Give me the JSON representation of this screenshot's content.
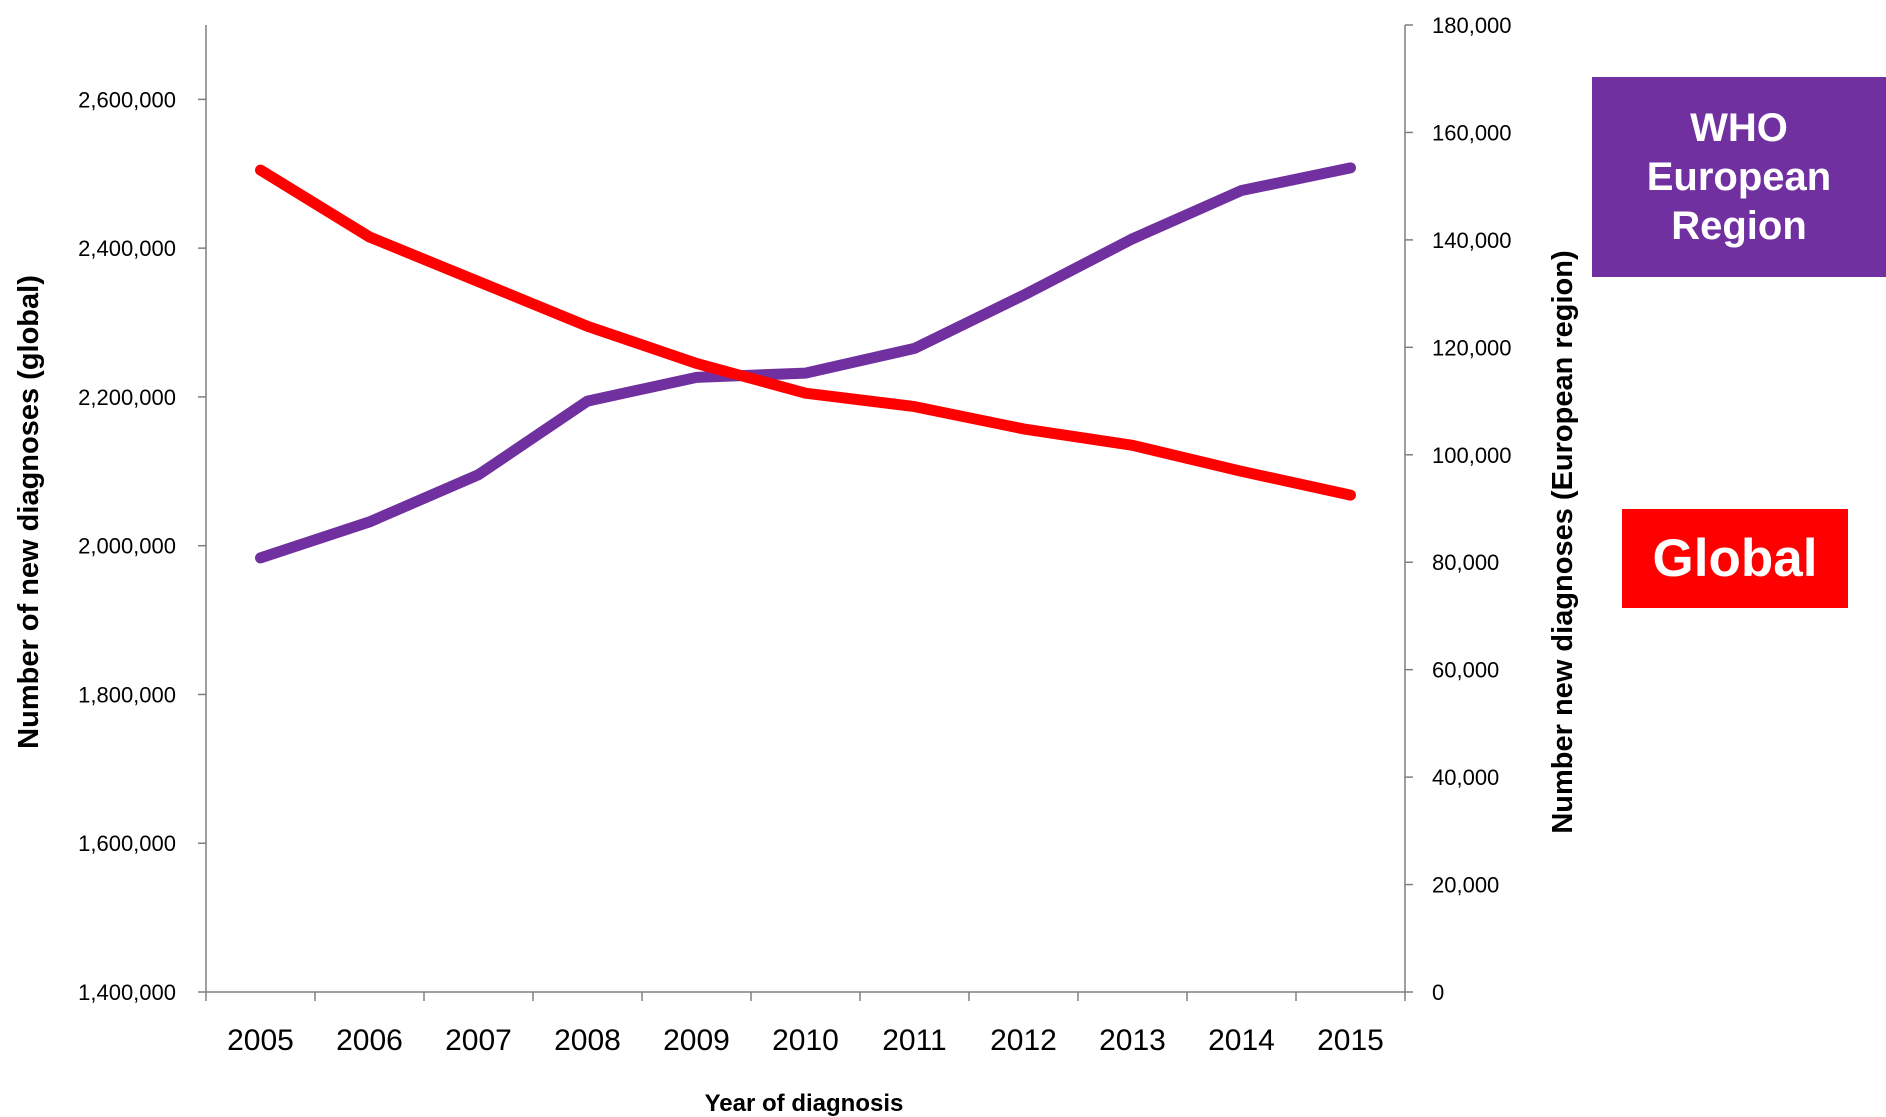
{
  "chart_data": {
    "type": "line",
    "categories": [
      "2005",
      "2006",
      "2007",
      "2008",
      "2009",
      "2010",
      "2011",
      "2012",
      "2013",
      "2014",
      "2015"
    ],
    "series": [
      {
        "name": "Global",
        "axis": "left",
        "color": "#ff0000",
        "values": [
          2505000,
          2415000,
          2355000,
          2295000,
          2245000,
          2205000,
          2187000,
          2157000,
          2135000,
          2100000,
          2068000
        ]
      },
      {
        "name": "WHO European Region",
        "axis": "right",
        "color": "#7030a0",
        "values": [
          80800,
          87500,
          96300,
          110000,
          114400,
          115200,
          119800,
          129700,
          140200,
          149200,
          153400
        ]
      }
    ],
    "y_left": {
      "label": "Number of new diagnoses (global)",
      "ylim": [
        1400000,
        2700000
      ],
      "ticks": [
        1400000,
        1600000,
        1800000,
        2000000,
        2200000,
        2400000,
        2600000
      ],
      "tick_labels": [
        "1,400,000",
        "1,600,000",
        "1,800,000",
        "2,000,000",
        "2,200,000",
        "2,400,000",
        "2,600,000"
      ]
    },
    "y_right": {
      "label": "Number new diagnoses (European region)",
      "ylim": [
        0,
        180000
      ],
      "ticks": [
        0,
        20000,
        40000,
        60000,
        80000,
        100000,
        120000,
        140000,
        160000,
        180000
      ],
      "tick_labels": [
        "0",
        "20,000",
        "40,000",
        "60,000",
        "80,000",
        "100,000",
        "120,000",
        "140,000",
        "160,000",
        "180,000"
      ]
    },
    "xlabel": "Year of diagnosis",
    "grid": false,
    "legend": {
      "placement": "right",
      "entries": [
        {
          "label": "WHO\nEuropean\nRegion",
          "color": "#7030a0"
        },
        {
          "label": "Global",
          "color": "#ff0000"
        }
      ]
    }
  }
}
